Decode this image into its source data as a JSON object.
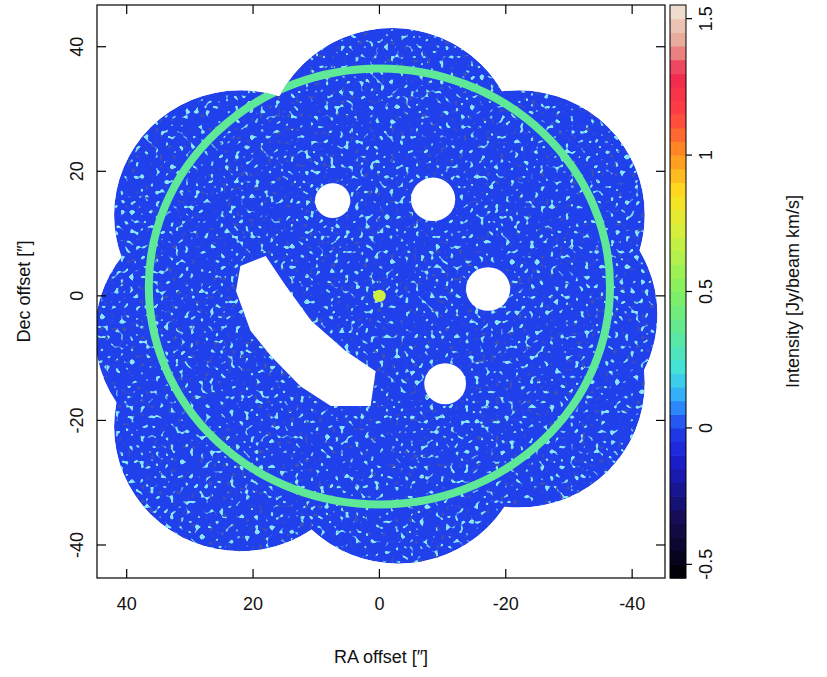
{
  "chart_data": {
    "type": "map",
    "x_label": "RA offset [″]",
    "y_label": "Dec offset [″]",
    "xlim": [
      44.7,
      -45.2
    ],
    "ylim": [
      -45.3,
      46.7
    ],
    "xticks": [
      40,
      20,
      0,
      -20,
      -40
    ],
    "yticks": [
      -40,
      -20,
      0,
      20,
      40
    ],
    "colorbar": {
      "label": "Intensity [Jy/beam km/s]",
      "range": [
        -0.55,
        1.55
      ],
      "ticks": [
        -0.5,
        0,
        0.5,
        1,
        1.5
      ]
    },
    "background_value": 0,
    "fields": [
      {
        "ra": 0,
        "dec": 0,
        "radius": 20
      },
      {
        "ra": -2,
        "dec": 23,
        "radius": 20
      },
      {
        "ra": 22,
        "dec": 13,
        "radius": 20
      },
      {
        "ra": 25,
        "dec": -6,
        "radius": 20
      },
      {
        "ra": 22,
        "dec": -21,
        "radius": 20
      },
      {
        "ra": -3,
        "dec": -23,
        "radius": 20
      },
      {
        "ra": -22,
        "dec": -14,
        "radius": 20
      },
      {
        "ra": -24,
        "dec": -3,
        "radius": 20
      },
      {
        "ra": -22,
        "dec": 13,
        "radius": 20
      }
    ],
    "ring": {
      "ra": 0,
      "dec": 1.5,
      "rx": 36.5,
      "ry": 35,
      "value": 0.35
    },
    "peak": {
      "ra": 0,
      "dec": 0,
      "radius": 1,
      "value": 0.7
    },
    "masked": [
      {
        "ra": 7.4,
        "dec": 15.3,
        "radius": 2.8
      },
      {
        "ra": -8.5,
        "dec": 15.5,
        "radius": 3.5
      },
      {
        "ra": -17.2,
        "dec": 1.1,
        "radius": 3.5
      },
      {
        "ra": -10.4,
        "dec": -14.1,
        "radius": 3.3
      }
    ],
    "masked_polygon": {
      "ra": [
        22.0,
        18.0,
        14.8,
        10.8,
        5.4,
        0.6,
        1.4,
        7.7,
        12.5,
        17.2,
        20.4,
        22.7
      ],
      "dec": [
        4.8,
        6.4,
        1.6,
        -4.0,
        -8.8,
        -12.1,
        -17.7,
        -17.7,
        -14.5,
        -9.6,
        -5.6,
        0.8
      ]
    }
  }
}
